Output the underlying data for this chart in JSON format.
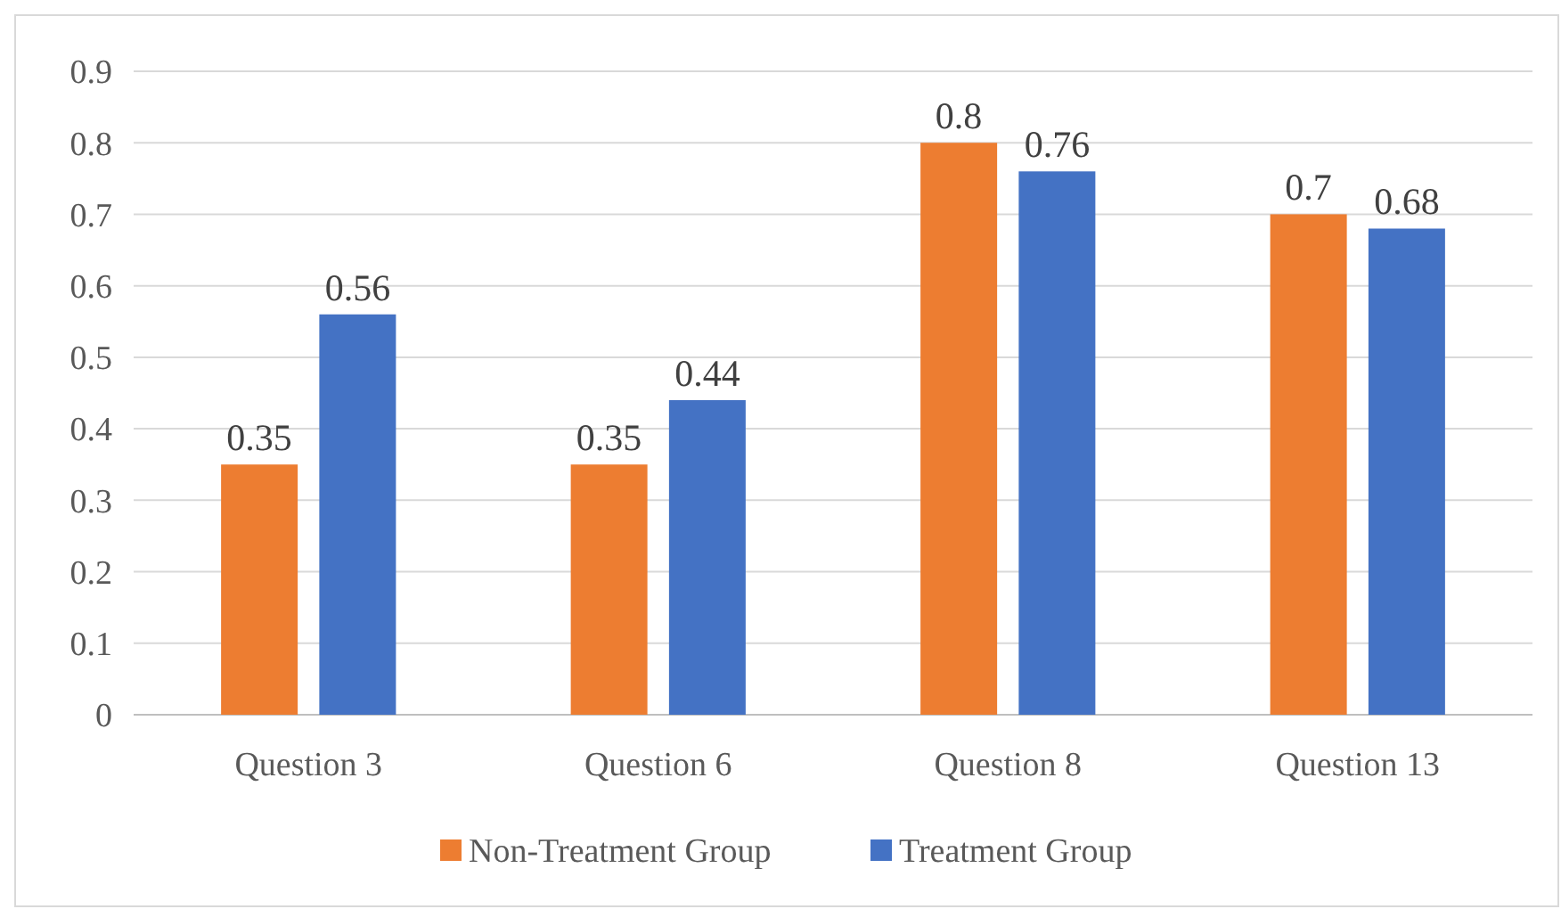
{
  "chart_data": {
    "type": "bar",
    "categories": [
      "Question 3",
      "Question 6",
      "Question 8",
      "Question 13"
    ],
    "series": [
      {
        "name": "Non-Treatment Group",
        "color": "#ed7d31",
        "values": [
          0.35,
          0.35,
          0.8,
          0.7
        ]
      },
      {
        "name": "Treatment Group",
        "color": "#4472c4",
        "values": [
          0.56,
          0.44,
          0.76,
          0.68
        ]
      }
    ],
    "ylim": [
      0,
      0.9
    ],
    "yticks": [
      0,
      0.1,
      0.2,
      0.3,
      0.4,
      0.5,
      0.6,
      0.7,
      0.8,
      0.9
    ],
    "grid": "y",
    "legend": "bottom",
    "data_labels": true
  }
}
